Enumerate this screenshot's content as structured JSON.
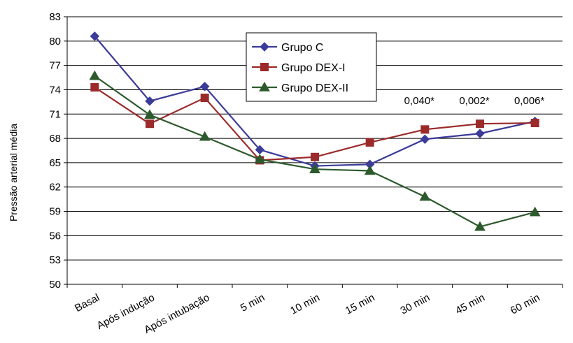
{
  "chart_data": {
    "type": "line",
    "title": "",
    "xlabel": "",
    "ylabel": "Pressão arterial média",
    "ylim": [
      50,
      83
    ],
    "yticks": [
      50,
      53,
      56,
      59,
      62,
      65,
      68,
      71,
      74,
      77,
      80,
      83
    ],
    "grid": "horizontal",
    "legend_position": "top-center",
    "categories": [
      "Basal",
      "Após indução",
      "Após intubação",
      "5 min",
      "10 min",
      "15 min",
      "30 min",
      "45 min",
      "60 min"
    ],
    "series": [
      {
        "name": "Grupo C",
        "marker": "diamond",
        "color": "#3b3b9a",
        "values": [
          80.6,
          72.6,
          74.4,
          66.6,
          64.6,
          64.8,
          67.9,
          68.6,
          70.1
        ]
      },
      {
        "name": "Grupo DEX-I",
        "marker": "square",
        "color": "#9b2a2a",
        "values": [
          74.3,
          69.8,
          73.0,
          65.3,
          65.7,
          67.5,
          69.1,
          69.8,
          69.9
        ]
      },
      {
        "name": "Grupo DEX-II",
        "marker": "triangle",
        "color": "#2d5a2d",
        "values": [
          75.7,
          70.9,
          68.2,
          65.4,
          64.2,
          64.0,
          60.8,
          57.1,
          58.9
        ]
      }
    ],
    "annotations": [
      {
        "text": "0,040*",
        "category_index": 6
      },
      {
        "text": "0,002*",
        "category_index": 7
      },
      {
        "text": "0,006*",
        "category_index": 8
      }
    ]
  }
}
